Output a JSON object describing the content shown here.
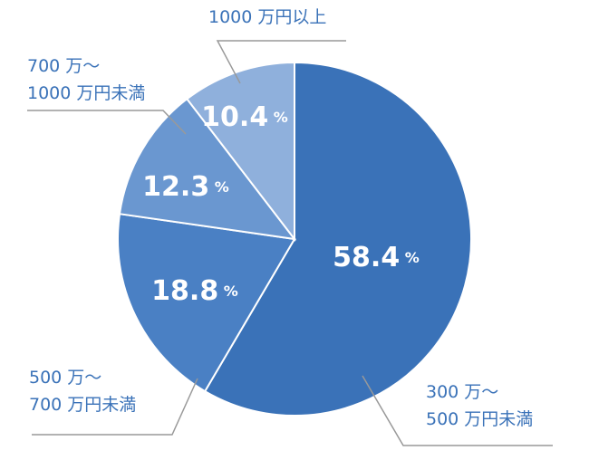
{
  "chart_data": {
    "type": "pie",
    "categories": [
      "300 万〜\n500 万円未満",
      "500 万〜\n700 万円未満",
      "700 万〜\n1000 万円未満",
      "1000 万円以上"
    ],
    "values": [
      58.4,
      18.8,
      12.3,
      10.4
    ],
    "value_labels": [
      "58.4%",
      "18.8%",
      "12.3%",
      "10.4%"
    ],
    "colors": [
      "#3a72b8",
      "#4a80c4",
      "#6a97d0",
      "#8fb0dc"
    ]
  }
}
